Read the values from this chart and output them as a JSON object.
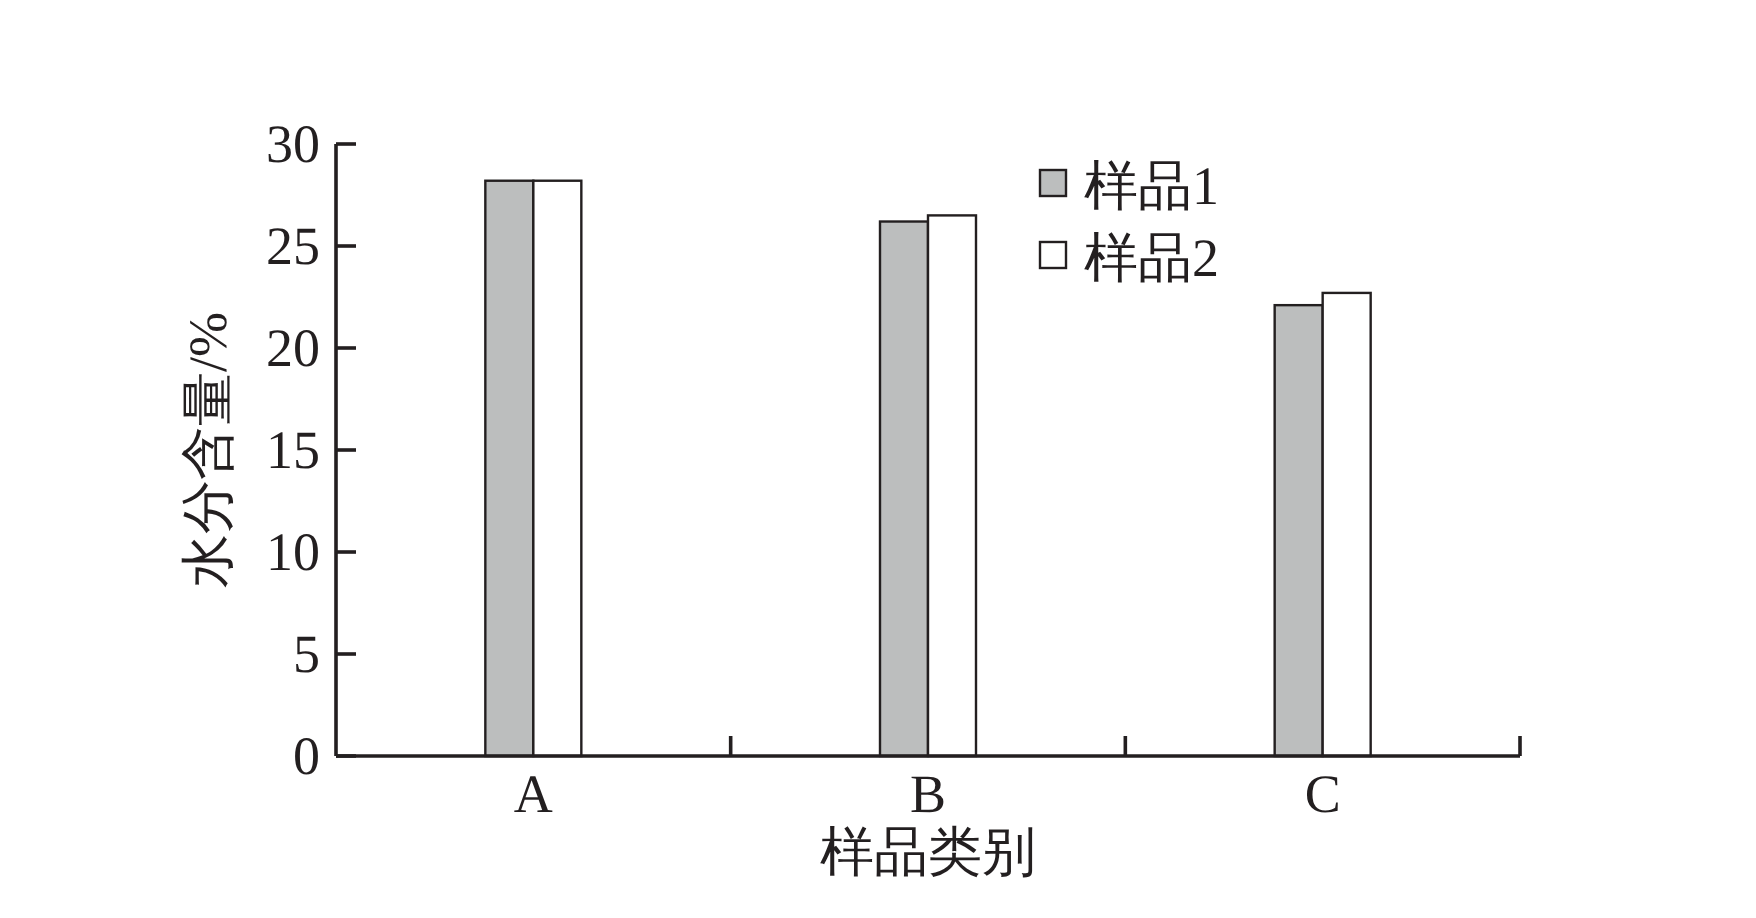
{
  "chart_data": {
    "type": "bar",
    "xlabel": "样品类别",
    "ylabel": "水分含量/%",
    "categories": [
      "A",
      "B",
      "C"
    ],
    "series": [
      {
        "name": "样品1",
        "color": "#bcbebe",
        "values": [
          28.2,
          26.2,
          22.1
        ]
      },
      {
        "name": "样品2",
        "color": "#ffffff",
        "values": [
          28.2,
          26.5,
          22.7
        ]
      }
    ],
    "ylim": [
      0,
      30
    ],
    "yticks": [
      0,
      5,
      10,
      15,
      20,
      25,
      30
    ],
    "legend": "top right",
    "grid": false
  }
}
